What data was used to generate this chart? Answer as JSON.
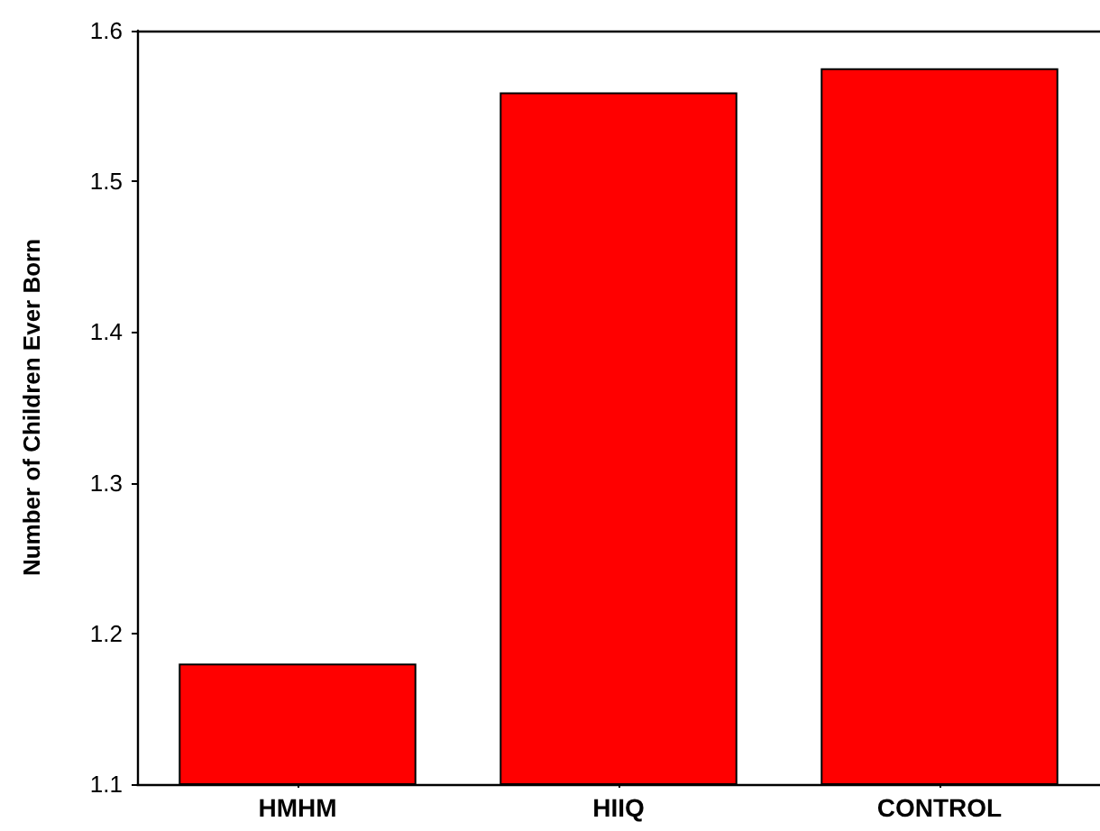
{
  "chart_data": {
    "type": "bar",
    "ylabel": "Number of Children Ever Born",
    "categories": [
      "HMHM",
      "HIIQ",
      "CONTROL"
    ],
    "values": [
      1.18,
      1.559,
      1.575
    ],
    "color": "#ff0000",
    "ylim": [
      1.1,
      1.6
    ],
    "yticks": [
      1.1,
      1.2,
      1.3,
      1.4,
      1.5,
      1.6
    ],
    "grid": false
  }
}
